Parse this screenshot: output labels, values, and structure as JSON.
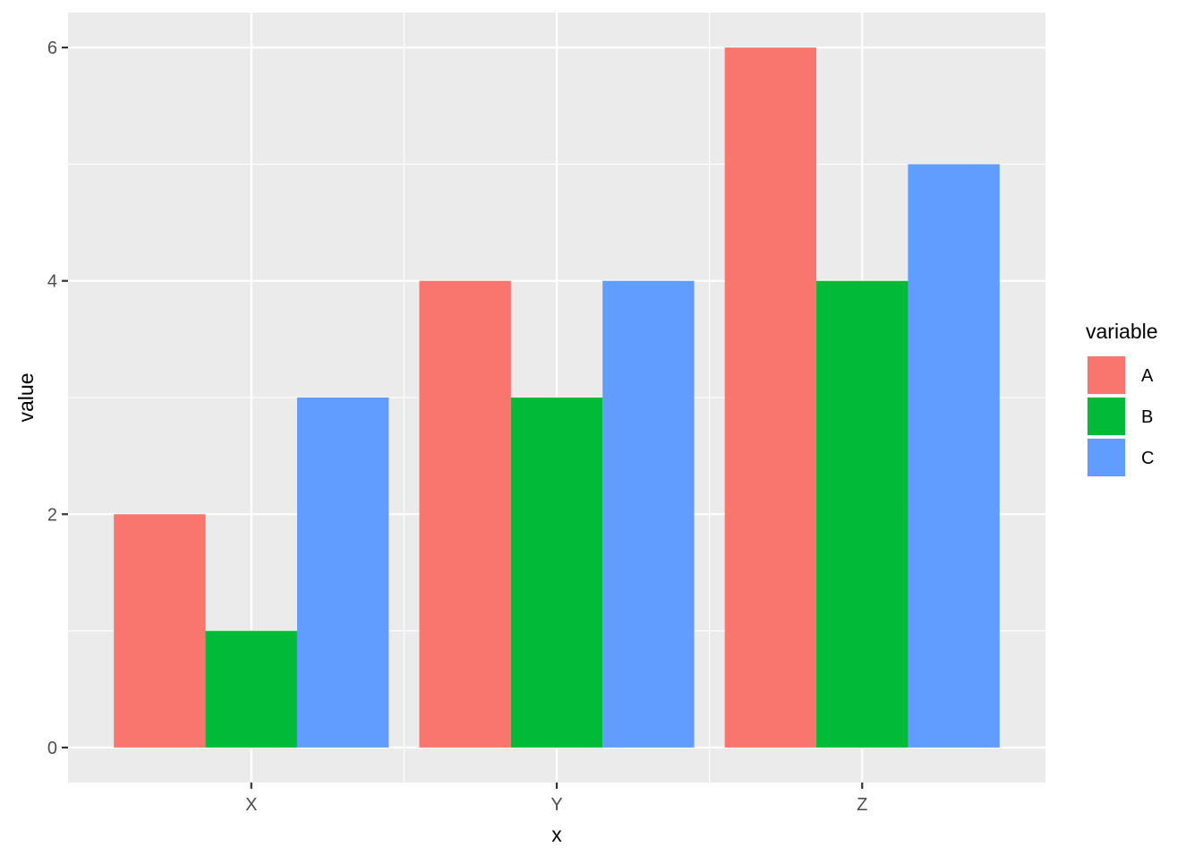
{
  "chart_data": {
    "type": "bar",
    "categories": [
      "X",
      "Y",
      "Z"
    ],
    "series": [
      {
        "name": "A",
        "values": [
          2,
          4,
          6
        ],
        "color": "#F8766D"
      },
      {
        "name": "B",
        "values": [
          1,
          3,
          4
        ],
        "color": "#00BA38"
      },
      {
        "name": "C",
        "values": [
          3,
          4,
          5
        ],
        "color": "#619CFF"
      }
    ],
    "xlabel": "x",
    "ylabel": "value",
    "ylim": [
      -0.3,
      6.3
    ],
    "yticks": [
      0,
      2,
      4,
      6
    ],
    "grid": true,
    "legend_title": "variable",
    "legend_position": "right",
    "panel_background": "#EBEBEB",
    "grid_color": "#FFFFFF"
  }
}
